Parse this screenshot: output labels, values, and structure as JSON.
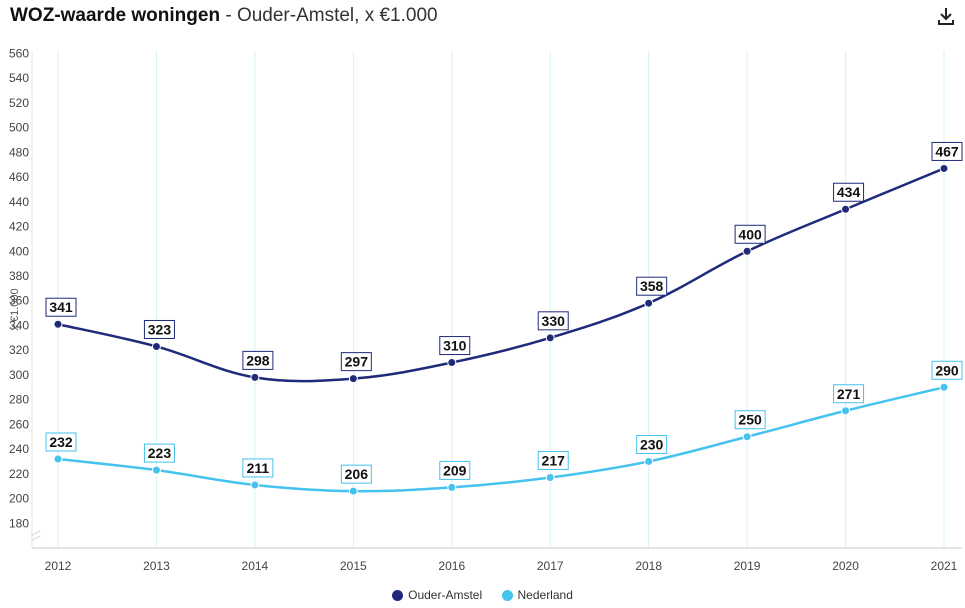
{
  "header": {
    "title": "WOZ-waarde woningen",
    "subtitle": " - Ouder-Amstel, x €1.000"
  },
  "toolbar": {
    "download_icon": "download-icon"
  },
  "colors": {
    "ouder_amstel": "#1f2a7a",
    "nederland": "#45c2ee",
    "grid": "#d6f2f8",
    "axis_text": "#444444"
  },
  "chart_data": {
    "type": "line",
    "title": "WOZ-waarde woningen",
    "subtitle": "Ouder-Amstel, x €1.000",
    "ylabel": "x €1.000",
    "xlabel": "",
    "ylim": [
      170,
      560
    ],
    "yticks": [
      180,
      200,
      220,
      240,
      260,
      280,
      300,
      320,
      340,
      360,
      380,
      400,
      420,
      440,
      460,
      480,
      500,
      520,
      540,
      560
    ],
    "categories": [
      "2012",
      "2013",
      "2014",
      "2015",
      "2016",
      "2017",
      "2018",
      "2019",
      "2020",
      "2021"
    ],
    "series": [
      {
        "name": "Ouder-Amstel",
        "values": [
          341,
          323,
          298,
          297,
          310,
          330,
          358,
          400,
          434,
          467
        ]
      },
      {
        "name": "Nederland",
        "values": [
          232,
          223,
          211,
          206,
          209,
          217,
          230,
          250,
          271,
          290
        ]
      }
    ],
    "legend_position": "bottom-center",
    "grid": "vertical"
  }
}
